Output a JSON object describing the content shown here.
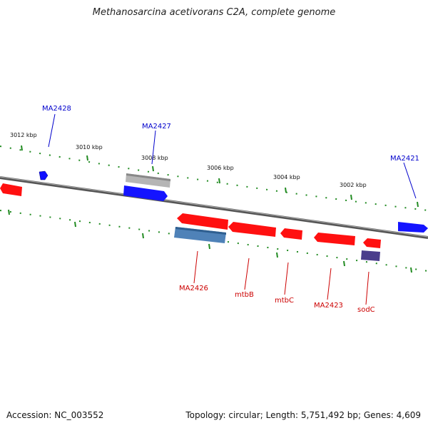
{
  "title": "Methanosarcina acetivorans C2A, complete genome",
  "footer": {
    "accession": "Accession: NC_003552",
    "summary": "Topology: circular; Length: 5,751,492 bp; Genes: 4,609"
  },
  "scale_ticks": [
    {
      "label": "3012 kbp"
    },
    {
      "label": "3010 kbp"
    },
    {
      "label": "3008 kbp"
    },
    {
      "label": "3006 kbp"
    },
    {
      "label": "3004 kbp"
    },
    {
      "label": "3002 kbp"
    }
  ],
  "genes": [
    {
      "label": "MA2428",
      "strand": "forward",
      "color": "#0000cc"
    },
    {
      "label": "MA2427",
      "strand": "forward",
      "color": "#0000cc"
    },
    {
      "label": "MA2421",
      "strand": "forward",
      "color": "#0000cc"
    },
    {
      "label": "MA2426",
      "strand": "reverse",
      "color": "#cc0000"
    },
    {
      "label": "mtbB",
      "strand": "reverse",
      "color": "#cc0000"
    },
    {
      "label": "mtbC",
      "strand": "reverse",
      "color": "#cc0000"
    },
    {
      "label": "MA2423",
      "strand": "reverse",
      "color": "#cc0000"
    },
    {
      "label": "sodC",
      "strand": "reverse",
      "color": "#cc0000"
    }
  ],
  "colors": {
    "forward_gene": "#0a1aff",
    "reverse_gene": "#ff1010",
    "forward_label": "#0000cc",
    "reverse_label": "#cc0000",
    "backbone": "#777777",
    "tick": "#228b22",
    "rna_feature": "#aaaaaa",
    "other_feature_light": "#4f82b8",
    "other_feature_dark": "#4a3d8c"
  }
}
